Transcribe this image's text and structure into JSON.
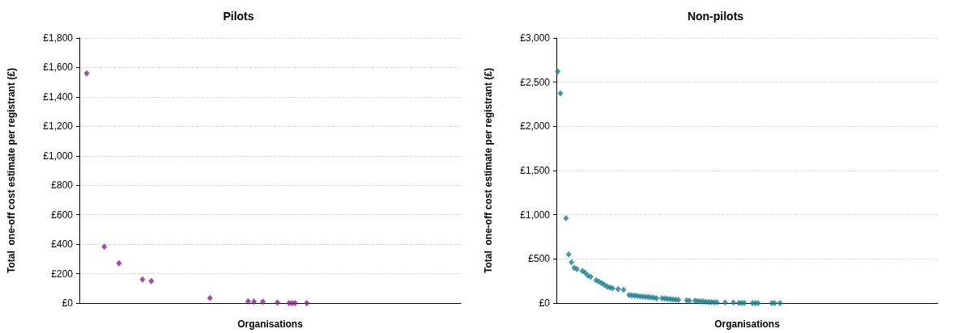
{
  "chart_data": [
    {
      "type": "scatter",
      "title": "Pilots",
      "xlabel": "Organisations",
      "ylabel": "Total  one-off cost estimate per registrant (£)",
      "marker": "diamond",
      "grid": "y",
      "tick_labels": "y",
      "ylim": [
        0,
        1800
      ],
      "yticks": [
        {
          "value": 0,
          "label": "£0"
        },
        {
          "value": 200,
          "label": "£200"
        },
        {
          "value": 400,
          "label": "£400"
        },
        {
          "value": 600,
          "label": "£600"
        },
        {
          "value": 800,
          "label": "£800"
        },
        {
          "value": 1000,
          "label": "£1,000"
        },
        {
          "value": 1200,
          "label": "£1,200"
        },
        {
          "value": 1400,
          "label": "£1,400"
        },
        {
          "value": 1600,
          "label": "£1,600"
        },
        {
          "value": 1800,
          "label": "£1,800"
        }
      ],
      "categories": [
        null,
        null,
        null,
        null,
        null,
        null,
        null,
        null,
        null,
        null,
        null,
        null,
        null,
        null,
        null,
        null,
        null,
        null,
        null,
        null,
        null,
        null,
        null,
        null,
        null,
        null,
        null,
        null,
        null,
        null,
        null,
        null,
        null,
        null,
        null,
        null,
        null,
        null,
        null,
        null,
        null,
        null,
        null,
        null,
        null,
        null,
        null,
        null,
        null,
        null,
        null,
        null,
        null,
        null,
        null,
        null,
        null,
        null,
        null,
        null,
        null,
        null,
        null,
        null,
        null,
        null,
        null,
        null,
        null,
        null,
        null,
        null,
        null,
        null,
        null,
        null,
        null,
        null,
        null,
        null,
        null,
        null,
        null,
        null,
        null,
        null,
        null,
        null,
        null,
        null,
        null,
        null,
        null,
        null,
        null,
        null,
        null,
        null,
        null,
        null,
        null,
        null,
        null,
        null,
        null,
        null,
        null,
        null,
        null,
        null,
        null,
        null,
        null,
        null,
        null,
        null,
        null,
        null,
        null,
        null,
        null,
        null,
        null,
        null,
        null,
        null,
        null,
        null,
        null,
        null
      ],
      "series": [
        {
          "color": "#8b1f8c",
          "values": [
            null,
            null,
            1560,
            null,
            null,
            null,
            null,
            null,
            383,
            null,
            null,
            null,
            null,
            270,
            null,
            null,
            null,
            null,
            null,
            null,
            null,
            161,
            null,
            null,
            150,
            null,
            null,
            null,
            null,
            null,
            null,
            null,
            null,
            null,
            null,
            null,
            null,
            null,
            null,
            null,
            null,
            null,
            null,
            null,
            34,
            null,
            null,
            null,
            null,
            null,
            null,
            null,
            null,
            null,
            null,
            null,
            null,
            13,
            null,
            9,
            null,
            null,
            9,
            null,
            null,
            null,
            null,
            4,
            null,
            null,
            null,
            0,
            0,
            0,
            null,
            null,
            null,
            0,
            null,
            null,
            null,
            null,
            null,
            null,
            null,
            null,
            null,
            null,
            null,
            null,
            null,
            null,
            null,
            null,
            null,
            null,
            null,
            null,
            null,
            null,
            null,
            null,
            null,
            null,
            null,
            null,
            null,
            null,
            null,
            null,
            null,
            null,
            null,
            null,
            null,
            null,
            null,
            null,
            null,
            null,
            null,
            null,
            null,
            null,
            null,
            null,
            null,
            null,
            null,
            null
          ]
        }
      ]
    },
    {
      "type": "scatter",
      "title": "Non-pilots",
      "xlabel": "Organisations",
      "ylabel": "Total  one-off cost estimate per registrant (£)",
      "marker": "diamond",
      "grid": "y",
      "tick_labels": "y",
      "ylim": [
        0,
        3000
      ],
      "yticks": [
        {
          "value": 0,
          "label": "£0"
        },
        {
          "value": 500,
          "label": "£500"
        },
        {
          "value": 1000,
          "label": "£1,000"
        },
        {
          "value": 1500,
          "label": "£1,500"
        },
        {
          "value": 2000,
          "label": "£2,000"
        },
        {
          "value": 2500,
          "label": "£2,500"
        },
        {
          "value": 3000,
          "label": "£3,000"
        }
      ],
      "categories": [
        null,
        null,
        null,
        null,
        null,
        null,
        null,
        null,
        null,
        null,
        null,
        null,
        null,
        null,
        null,
        null,
        null,
        null,
        null,
        null,
        null,
        null,
        null,
        null,
        null,
        null,
        null,
        null,
        null,
        null,
        null,
        null,
        null,
        null,
        null,
        null,
        null,
        null,
        null,
        null,
        null,
        null,
        null,
        null,
        null,
        null,
        null,
        null,
        null,
        null,
        null,
        null,
        null,
        null,
        null,
        null,
        null,
        null,
        null,
        null,
        null,
        null,
        null,
        null,
        null,
        null,
        null,
        null,
        null,
        null,
        null,
        null,
        null,
        null,
        null,
        null,
        null,
        null,
        null,
        null,
        null,
        null,
        null,
        null,
        null,
        null,
        null,
        null,
        null,
        null,
        null,
        null,
        null,
        null,
        null,
        null,
        null,
        null,
        null,
        null,
        null,
        null,
        null,
        null,
        null,
        null,
        null,
        null,
        null,
        null,
        null,
        null,
        null,
        null,
        null,
        null,
        null,
        null,
        null,
        null,
        null,
        null,
        null,
        null,
        null,
        null,
        null,
        null,
        null,
        null,
        null,
        null,
        null,
        null,
        null,
        null,
        null,
        null,
        null
      ],
      "series": [
        {
          "color": "#1a7f8e",
          "values": [
            2621,
            2373,
            null,
            961,
            552,
            461,
            400,
            385,
            null,
            364,
            342,
            312,
            297,
            null,
            258,
            242,
            227,
            209,
            188,
            176,
            167,
            null,
            158,
            null,
            152,
            null,
            91,
            88,
            85,
            82,
            76,
            73,
            70,
            70,
            64,
            61,
            55,
            null,
            55,
            52,
            48,
            45,
            42,
            39,
            36,
            null,
            null,
            30,
            27,
            null,
            27,
            24,
            21,
            18,
            15,
            12,
            12,
            9,
            9,
            null,
            null,
            6,
            null,
            null,
            6,
            null,
            3,
            3,
            3,
            null,
            null,
            0,
            0,
            0,
            null,
            null,
            null,
            null,
            0,
            0,
            null,
            0,
            null,
            null,
            null,
            null,
            null,
            null,
            null,
            null,
            null,
            null,
            null,
            null,
            null,
            null,
            null,
            null,
            null,
            null,
            null,
            null,
            null,
            null,
            null,
            null,
            null,
            null,
            null,
            null,
            null,
            null,
            null,
            null,
            null,
            null,
            null,
            null,
            null,
            null,
            null,
            null,
            null,
            null,
            null,
            null,
            null,
            null,
            null,
            null,
            null,
            null,
            null,
            null,
            null,
            null,
            null,
            null,
            null
          ]
        }
      ]
    }
  ]
}
